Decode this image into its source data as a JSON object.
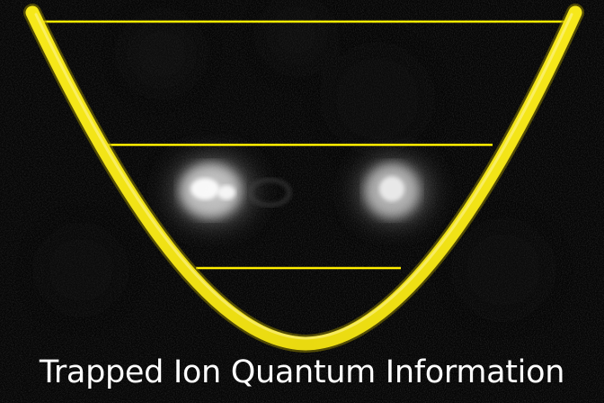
{
  "caption": "Trapped Ion Quantum Information",
  "colors": {
    "background": "#050505",
    "potential_well": "#f2e414",
    "potential_well_edge": "#b8a800",
    "energy_levels": "#ffee00",
    "ion_glow": "#ffffff",
    "caption_text": "#ffffff"
  },
  "scene": {
    "ion_count": 2,
    "energy_level_count": 3,
    "well_shape": "parabola"
  }
}
